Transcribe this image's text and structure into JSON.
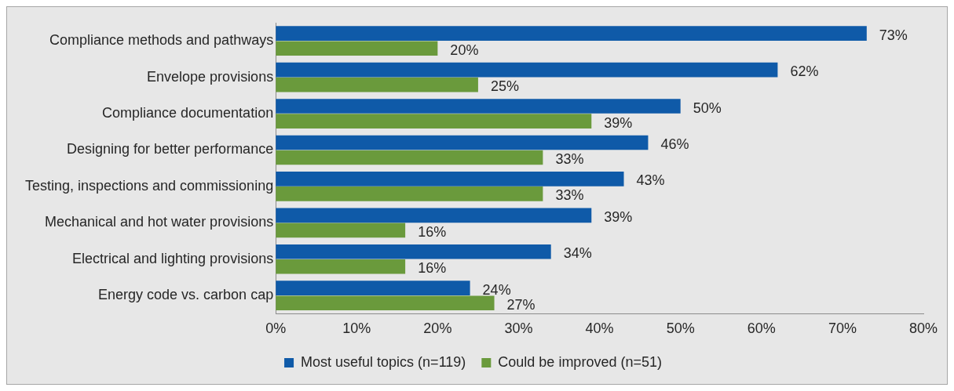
{
  "chart_data": {
    "type": "bar",
    "orientation": "horizontal",
    "categories": [
      "Compliance methods and pathways",
      "Envelope provisions",
      "Compliance documentation",
      "Designing for better performance",
      "Testing, inspections and commissioning",
      "Mechanical and hot water provisions",
      "Electrical and lighting provisions",
      "Energy code vs. carbon cap"
    ],
    "series": [
      {
        "name": "Most useful topics (n=119)",
        "color": "#0f5aa8",
        "values": [
          73,
          62,
          50,
          46,
          43,
          39,
          34,
          24
        ],
        "value_labels": [
          "73%",
          "62%",
          "50%",
          "46%",
          "43%",
          "39%",
          "34%",
          "24%"
        ]
      },
      {
        "name": "Could be improved (n=51)",
        "color": "#6a9a3c",
        "values": [
          20,
          25,
          39,
          33,
          33,
          16,
          16,
          27
        ],
        "value_labels": [
          "20%",
          "25%",
          "39%",
          "33%",
          "33%",
          "16%",
          "16%",
          "27%"
        ]
      }
    ],
    "xlim": [
      0,
      80
    ],
    "xticks": [
      {
        "value": 0,
        "label": "0%"
      },
      {
        "value": 10,
        "label": "10%"
      },
      {
        "value": 20,
        "label": "20%"
      },
      {
        "value": 30,
        "label": "30%"
      },
      {
        "value": 40,
        "label": "40%"
      },
      {
        "value": 50,
        "label": "50%"
      },
      {
        "value": 60,
        "label": "60%"
      },
      {
        "value": 70,
        "label": "70%"
      },
      {
        "value": 80,
        "label": "80%"
      }
    ],
    "grid": false,
    "legend": "bottom"
  }
}
